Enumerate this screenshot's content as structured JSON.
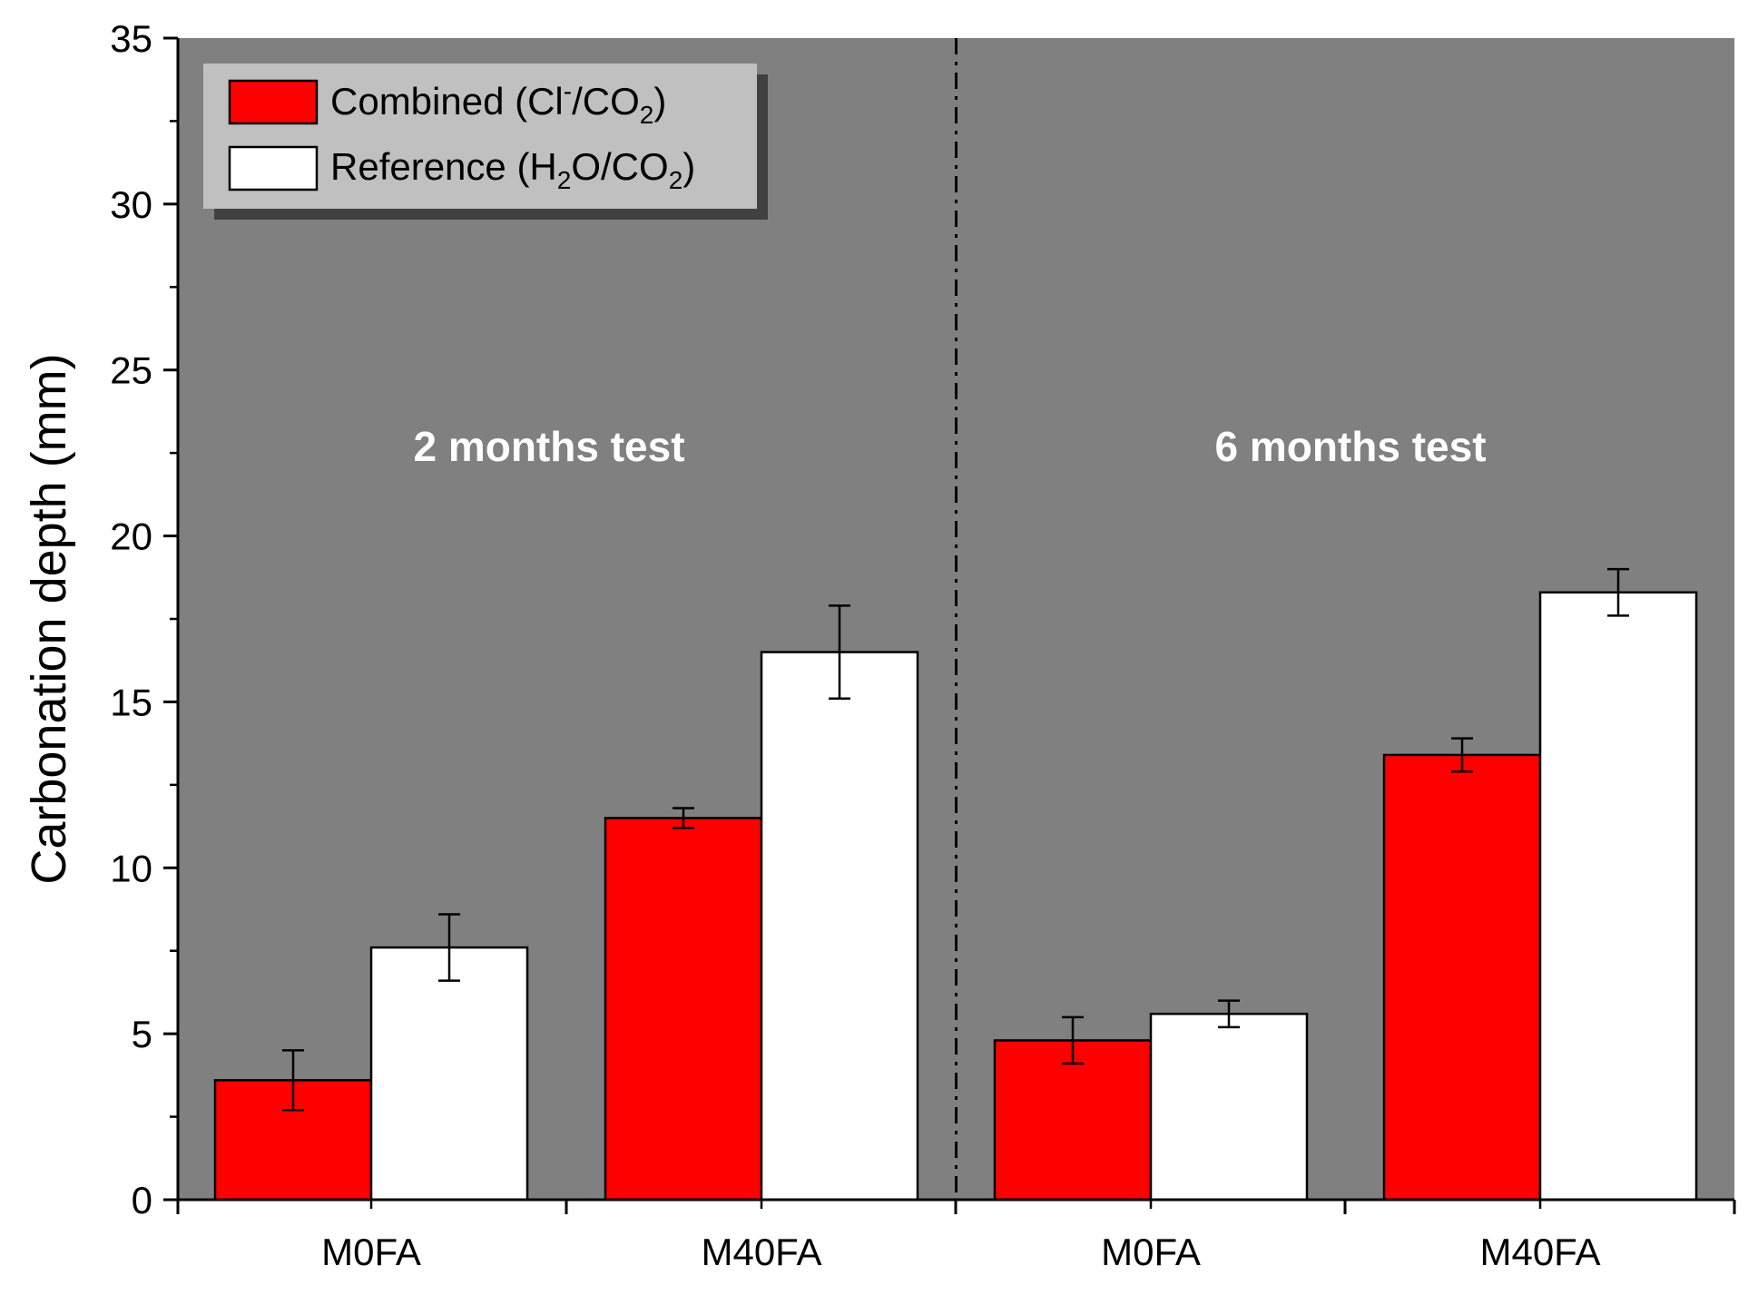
{
  "chart_data": {
    "type": "bar",
    "title": "",
    "xlabel": "",
    "ylabel": "Carbonation depth (mm)",
    "ylim": [
      0,
      35
    ],
    "yticks": [
      "0",
      "5",
      "10",
      "15",
      "20",
      "25",
      "30",
      "35"
    ],
    "background": "#808080",
    "groups": [
      {
        "label": "2 months test",
        "categories": [
          {
            "label": "M0FA",
            "combined": 3.6,
            "combined_err": 0.9,
            "reference": 7.6,
            "reference_err": 1.0
          },
          {
            "label": "M40FA",
            "combined": 11.5,
            "combined_err": 0.3,
            "reference": 16.5,
            "reference_err": 1.4
          }
        ]
      },
      {
        "label": "6 months test",
        "categories": [
          {
            "label": "M0FA",
            "combined": 4.8,
            "combined_err": 0.7,
            "reference": 5.6,
            "reference_err": 0.4
          },
          {
            "label": "M40FA",
            "combined": 13.4,
            "combined_err": 0.5,
            "reference": 18.3,
            "reference_err": 0.7
          }
        ]
      }
    ],
    "series": [
      {
        "key": "combined",
        "name": "Combined (Cl⁻/CO₂)",
        "color": "#ff0000"
      },
      {
        "key": "reference",
        "name": "Reference (H₂O/CO₂)",
        "color": "#ffffff"
      }
    ],
    "legend": {
      "position": "top-left",
      "background": "#c0c0c0",
      "shadow": "#404040",
      "entries": [
        {
          "prefix": "Combined (Cl",
          "sup": "-",
          "mid": "/CO",
          "sub": "2",
          "suffix": ")"
        },
        {
          "prefix": "Reference (H",
          "sub1": "2",
          "mid": "O/CO",
          "sub": "2",
          "suffix": ")"
        }
      ]
    }
  }
}
